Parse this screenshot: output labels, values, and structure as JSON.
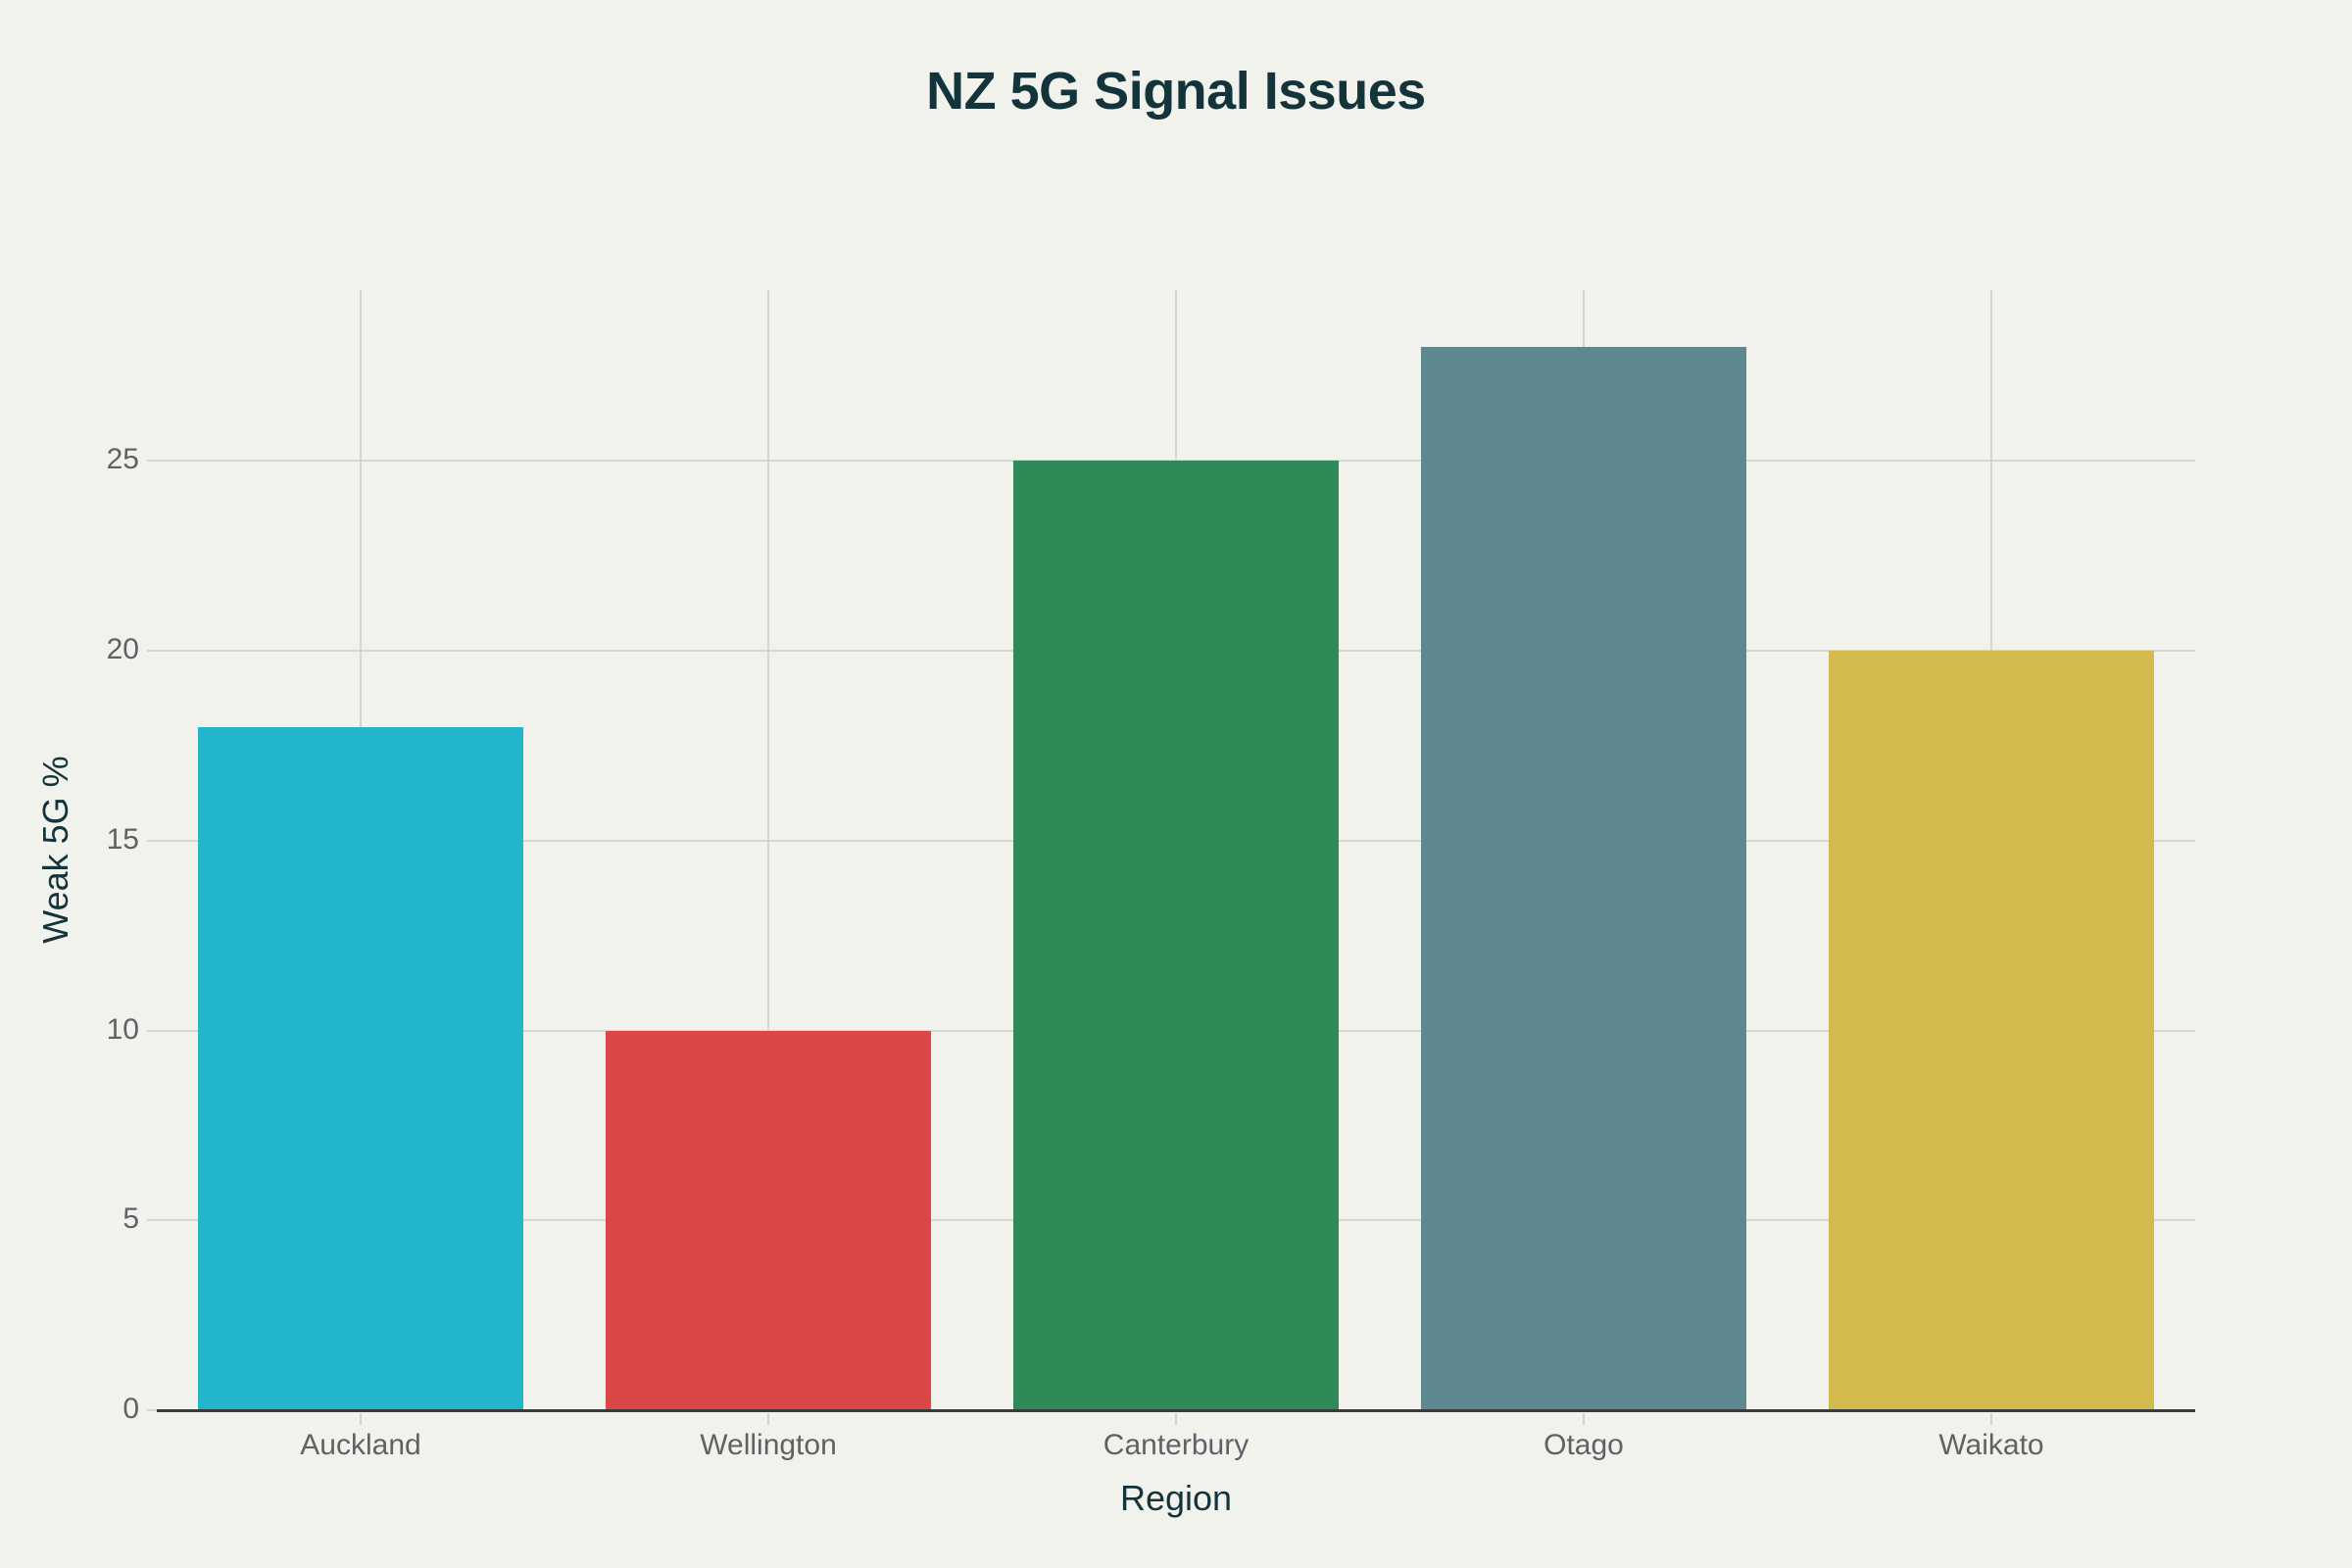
{
  "chart_data": {
    "type": "bar",
    "title": "NZ 5G Signal Issues",
    "xlabel": "Region",
    "ylabel": "Weak 5G %",
    "categories": [
      "Auckland",
      "Wellington",
      "Canterbury",
      "Otago",
      "Waikato"
    ],
    "values": [
      18,
      10,
      25,
      28,
      20
    ],
    "colors": [
      "#21b6cb",
      "#db4646",
      "#2e8a57",
      "#5e8890",
      "#d3ba4d"
    ],
    "yticks": [
      0,
      5,
      10,
      15,
      20,
      25
    ],
    "ylim": [
      0,
      29.5
    ],
    "grid": true,
    "legend": "none"
  }
}
